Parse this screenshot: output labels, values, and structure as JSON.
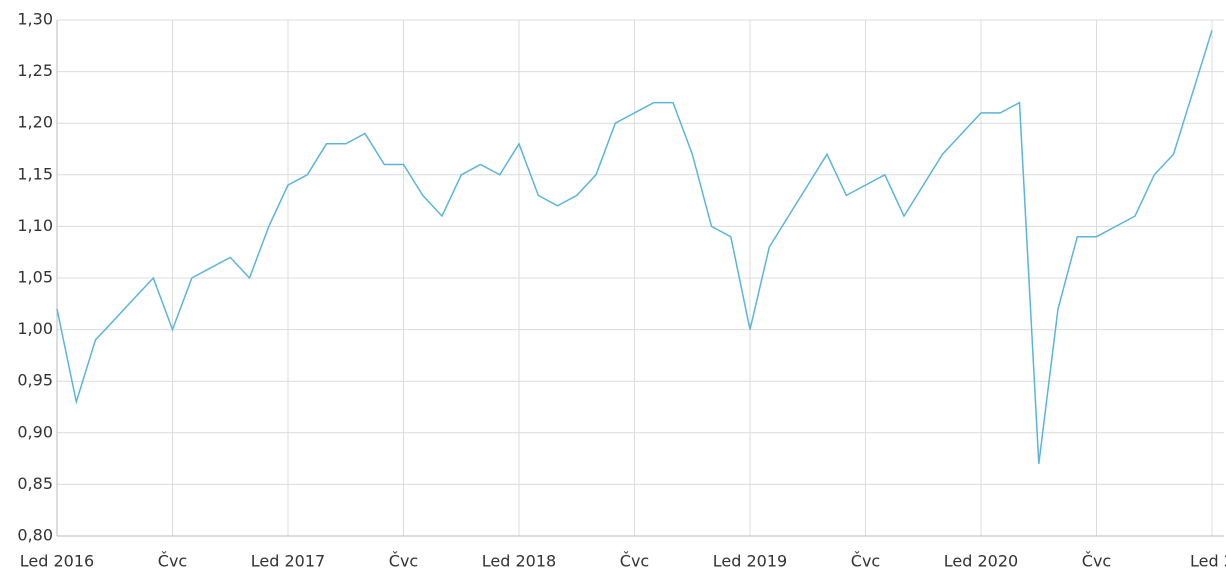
{
  "chart_data": {
    "type": "line",
    "x": [
      "2016-01",
      "2016-02",
      "2016-03",
      "2016-04",
      "2016-05",
      "2016-06",
      "2016-07",
      "2016-08",
      "2016-09",
      "2016-10",
      "2016-11",
      "2016-12",
      "2017-01",
      "2017-02",
      "2017-03",
      "2017-04",
      "2017-05",
      "2017-06",
      "2017-07",
      "2017-08",
      "2017-09",
      "2017-10",
      "2017-11",
      "2017-12",
      "2018-01",
      "2018-02",
      "2018-03",
      "2018-04",
      "2018-05",
      "2018-06",
      "2018-07",
      "2018-08",
      "2018-09",
      "2018-10",
      "2018-11",
      "2018-12",
      "2019-01",
      "2019-02",
      "2019-03",
      "2019-04",
      "2019-05",
      "2019-06",
      "2019-07",
      "2019-08",
      "2019-09",
      "2019-10",
      "2019-11",
      "2019-12",
      "2020-01",
      "2020-02",
      "2020-03",
      "2020-04",
      "2020-05",
      "2020-06",
      "2020-07",
      "2020-08",
      "2020-09",
      "2020-10",
      "2020-11",
      "2020-12",
      "2021-01"
    ],
    "series": [
      {
        "color": "#5bb5d9",
        "values": [
          1.02,
          0.93,
          0.99,
          1.01,
          1.03,
          1.05,
          1.0,
          1.05,
          1.06,
          1.07,
          1.05,
          1.1,
          1.14,
          1.15,
          1.18,
          1.18,
          1.19,
          1.16,
          1.16,
          1.13,
          1.11,
          1.15,
          1.16,
          1.15,
          1.18,
          1.13,
          1.12,
          1.13,
          1.15,
          1.2,
          1.21,
          1.22,
          1.22,
          1.17,
          1.1,
          1.09,
          1.0,
          1.08,
          1.11,
          1.14,
          1.17,
          1.13,
          1.14,
          1.15,
          1.11,
          1.14,
          1.17,
          1.19,
          1.21,
          1.21,
          1.22,
          0.87,
          1.02,
          1.09,
          1.09,
          1.1,
          1.11,
          1.15,
          1.17,
          1.23,
          1.29
        ]
      }
    ],
    "xlim": [
      "2016-01",
      "2021-01"
    ],
    "xticks": [
      {
        "value": "2016-01",
        "label": "Led 2016"
      },
      {
        "value": "2016-07",
        "label": "Čvc"
      },
      {
        "value": "2017-01",
        "label": "Led 2017"
      },
      {
        "value": "2017-07",
        "label": "Čvc"
      },
      {
        "value": "2018-01",
        "label": "Led 2018"
      },
      {
        "value": "2018-07",
        "label": "Čvc"
      },
      {
        "value": "2019-01",
        "label": "Led 2019"
      },
      {
        "value": "2019-07",
        "label": "Čvc"
      },
      {
        "value": "2020-01",
        "label": "Led 2020"
      },
      {
        "value": "2020-07",
        "label": "Čvc"
      },
      {
        "value": "2021-01",
        "label": "Led 2"
      }
    ],
    "ylim": [
      0.8,
      1.3
    ],
    "yticks": [
      {
        "value": 0.8,
        "label": "0,80"
      },
      {
        "value": 0.85,
        "label": "0,85"
      },
      {
        "value": 0.9,
        "label": "0,90"
      },
      {
        "value": 0.95,
        "label": "0,95"
      },
      {
        "value": 1.0,
        "label": "1,00"
      },
      {
        "value": 1.05,
        "label": "1,05"
      },
      {
        "value": 1.1,
        "label": "1,10"
      },
      {
        "value": 1.15,
        "label": "1,15"
      },
      {
        "value": 1.2,
        "label": "1,20"
      },
      {
        "value": 1.25,
        "label": "1,25"
      },
      {
        "value": 1.3,
        "label": "1,30"
      }
    ],
    "grid": true
  }
}
